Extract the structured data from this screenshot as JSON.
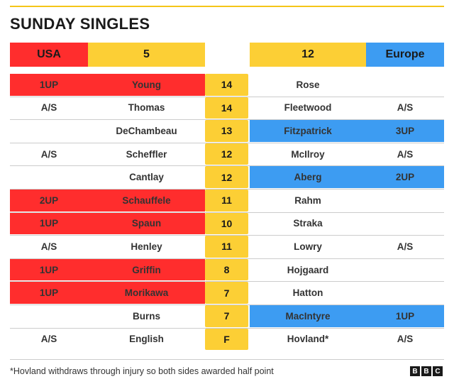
{
  "title": "SUNDAY SINGLES",
  "header": {
    "usa_label": "USA",
    "usa_score": "5",
    "europe_score": "12",
    "europe_label": "Europe"
  },
  "colors": {
    "usa": "#ff2d2d",
    "europe": "#3d9cf2",
    "hole": "#fccf35",
    "accent": "#f5c518"
  },
  "matches": [
    {
      "usa_status": "1UP",
      "usa_player": "Young",
      "hole": "14",
      "eu_player": "Rose",
      "eu_status": "",
      "winner": "usa"
    },
    {
      "usa_status": "A/S",
      "usa_player": "Thomas",
      "hole": "14",
      "eu_player": "Fleetwood",
      "eu_status": "A/S",
      "winner": "none"
    },
    {
      "usa_status": "",
      "usa_player": "DeChambeau",
      "hole": "13",
      "eu_player": "Fitzpatrick",
      "eu_status": "3UP",
      "winner": "europe"
    },
    {
      "usa_status": "A/S",
      "usa_player": "Scheffler",
      "hole": "12",
      "eu_player": "McIlroy",
      "eu_status": "A/S",
      "winner": "none"
    },
    {
      "usa_status": "",
      "usa_player": "Cantlay",
      "hole": "12",
      "eu_player": "Aberg",
      "eu_status": "2UP",
      "winner": "europe"
    },
    {
      "usa_status": "2UP",
      "usa_player": "Schauffele",
      "hole": "11",
      "eu_player": "Rahm",
      "eu_status": "",
      "winner": "usa"
    },
    {
      "usa_status": "1UP",
      "usa_player": "Spaun",
      "hole": "10",
      "eu_player": "Straka",
      "eu_status": "",
      "winner": "usa"
    },
    {
      "usa_status": "A/S",
      "usa_player": "Henley",
      "hole": "11",
      "eu_player": "Lowry",
      "eu_status": "A/S",
      "winner": "none"
    },
    {
      "usa_status": "1UP",
      "usa_player": "Griffin",
      "hole": "8",
      "eu_player": "Hojgaard",
      "eu_status": "",
      "winner": "usa"
    },
    {
      "usa_status": "1UP",
      "usa_player": "Morikawa",
      "hole": "7",
      "eu_player": "Hatton",
      "eu_status": "",
      "winner": "usa"
    },
    {
      "usa_status": "",
      "usa_player": "Burns",
      "hole": "7",
      "eu_player": "MacIntyre",
      "eu_status": "1UP",
      "winner": "europe"
    },
    {
      "usa_status": "A/S",
      "usa_player": "English",
      "hole": "F",
      "eu_player": "Hovland*",
      "eu_status": "A/S",
      "winner": "none"
    }
  ],
  "footnote": "*Hovland withdraws through injury so both sides awarded half point",
  "logo": [
    "B",
    "B",
    "C"
  ]
}
